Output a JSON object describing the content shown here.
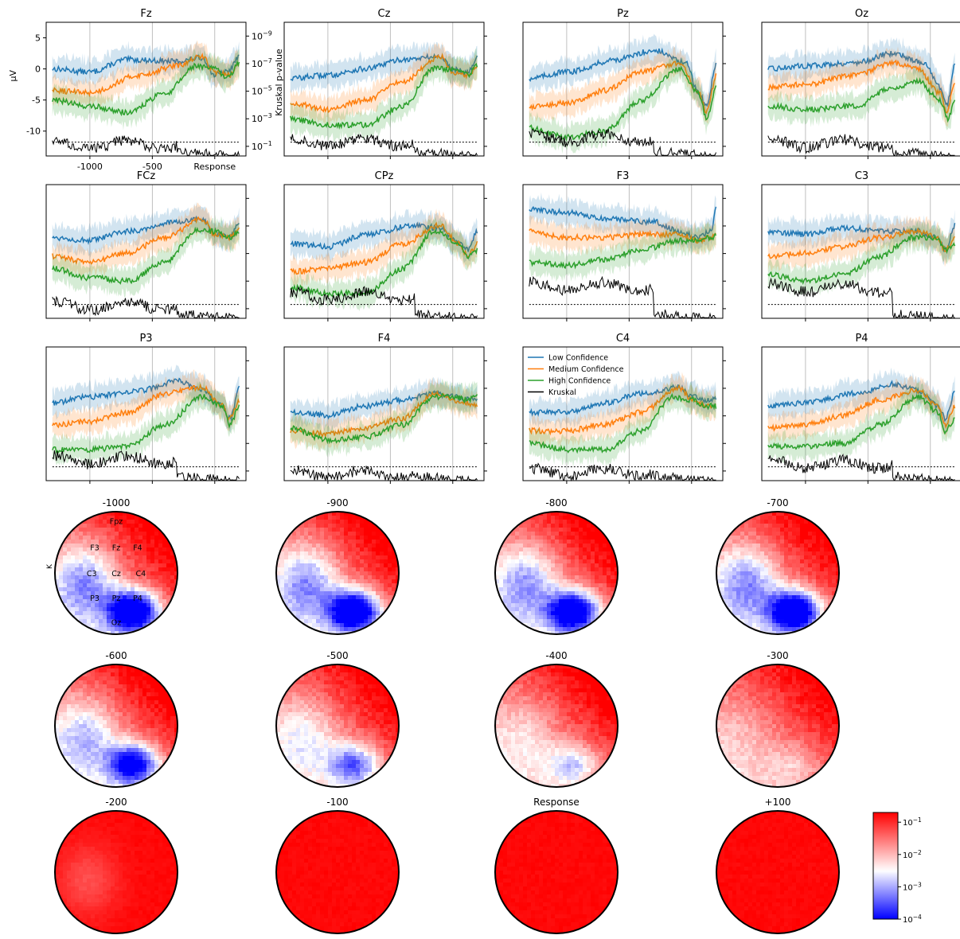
{
  "chart_data": {
    "type": "line",
    "erp_panels": [
      {
        "title": "Fz"
      },
      {
        "title": "Cz"
      },
      {
        "title": "Pz"
      },
      {
        "title": "Oz"
      },
      {
        "title": "FCz"
      },
      {
        "title": "CPz"
      },
      {
        "title": "F3"
      },
      {
        "title": "C3"
      },
      {
        "title": "P3"
      },
      {
        "title": "F4"
      },
      {
        "title": "C4"
      },
      {
        "title": "P4"
      }
    ],
    "x_ticks": [
      {
        "value": -1000,
        "label": "-1000"
      },
      {
        "value": -500,
        "label": "-500"
      },
      {
        "value": 0,
        "label": "Response"
      }
    ],
    "xlim": [
      -1350,
      250
    ],
    "ylabel": "μV",
    "ylim": [
      -14,
      7.5
    ],
    "y_ticks": [
      {
        "value": 5,
        "label": "5"
      },
      {
        "value": 0,
        "label": "0"
      },
      {
        "value": -5,
        "label": "-5"
      },
      {
        "value": -10,
        "label": "-10"
      }
    ],
    "y2label": "Kruskal p-value",
    "y2_ticks": [
      {
        "exp": "-9",
        "label": "10",
        "value": 1e-09
      },
      {
        "exp": "-7",
        "label": "10",
        "value": 1e-07
      },
      {
        "exp": "-5",
        "label": "10",
        "value": 1e-05
      },
      {
        "exp": "-3",
        "label": "10",
        "value": 0.001
      },
      {
        "exp": "-1",
        "label": "10",
        "value": 0.1
      }
    ],
    "significance_threshold": 0.05,
    "series": [
      {
        "name": "Low Confidence",
        "color": "#1f77b4"
      },
      {
        "name": "Medium Confidence",
        "color": "#ff7f0e"
      },
      {
        "name": "High Confidence",
        "color": "#2ca02c"
      },
      {
        "name": "Kruskal",
        "color": "#000000"
      }
    ],
    "topomaps": [
      {
        "title": "-1000"
      },
      {
        "title": "-900"
      },
      {
        "title": "-800"
      },
      {
        "title": "-700"
      },
      {
        "title": "-600"
      },
      {
        "title": "-500"
      },
      {
        "title": "-400"
      },
      {
        "title": "-300"
      },
      {
        "title": "-200"
      },
      {
        "title": "-100"
      },
      {
        "title": "Response"
      },
      {
        "title": "+100"
      }
    ],
    "electrodes": [
      "Fpz",
      "F3",
      "Fz",
      "F4",
      "C3",
      "Cz",
      "C4",
      "P3",
      "Pz",
      "P4",
      "Oz"
    ],
    "topo_axis_label": "K",
    "colorbar": {
      "scale": "log",
      "min": 0.0001,
      "max": 0.2,
      "ticks": [
        {
          "exp": "-1",
          "label": "10",
          "value": 0.1
        },
        {
          "exp": "-2",
          "label": "10",
          "value": 0.01
        },
        {
          "exp": "-3",
          "label": "10",
          "value": 0.001
        },
        {
          "exp": "-4",
          "label": "10",
          "value": 0.0001
        }
      ],
      "low_color": "#0000ff",
      "mid_color": "#ffffff",
      "high_color": "#ff0000"
    }
  }
}
